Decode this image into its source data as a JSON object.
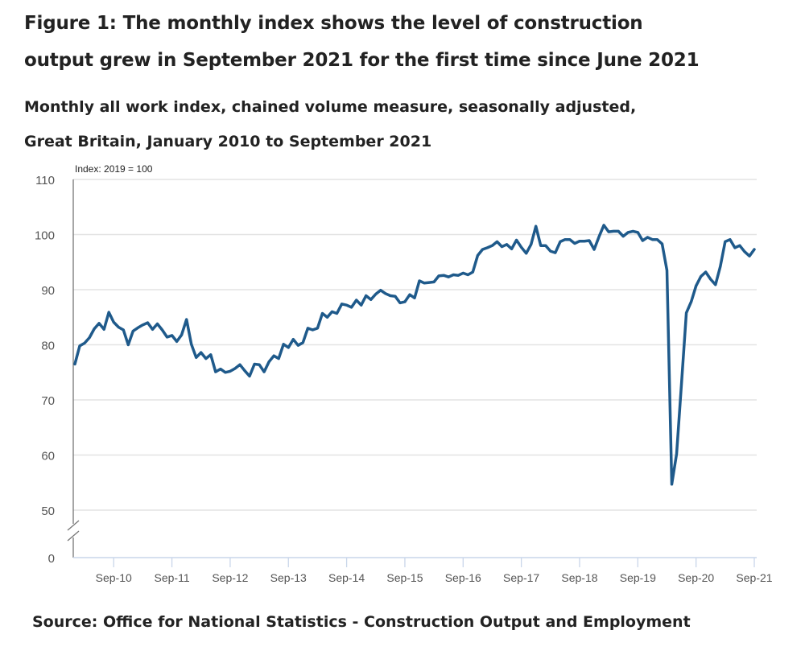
{
  "title_line1": "Figure 1: The monthly index shows the level of construction",
  "title_line2": "output grew in September 2021 for the first time since June 2021",
  "subtitle_line1": "Monthly all work index, chained volume measure, seasonally adjusted,",
  "subtitle_line2": "Great Britain, January 2010 to September 2021",
  "source": "Source: Office for National Statistics - Construction Output and Employment",
  "colors": {
    "line": "#1f5a8b",
    "grid": "#e3e3e3",
    "axis": "#777777",
    "xaxis": "#c9d6ea",
    "text": "#555555"
  },
  "chart_data": {
    "type": "line",
    "title": "Monthly all work index, chained volume measure, seasonally adjusted, Great Britain, January 2010 to September 2021",
    "ylabel": "Index: 2019 = 100",
    "xlabel": "",
    "ylim": [
      0,
      110
    ],
    "y_axis_break": [
      0,
      50
    ],
    "yticks": [
      0,
      50,
      60,
      70,
      80,
      90,
      100,
      110
    ],
    "grid": true,
    "legend": "none",
    "x_start": "Jan-2010",
    "x_end": "Sep-2021",
    "xtick_labels": [
      "Sep-10",
      "Sep-11",
      "Sep-12",
      "Sep-13",
      "Sep-14",
      "Sep-15",
      "Sep-16",
      "Sep-17",
      "Sep-18",
      "Sep-19",
      "Sep-20",
      "Sep-21"
    ],
    "xtick_month_index": [
      8,
      20,
      32,
      44,
      56,
      68,
      80,
      92,
      104,
      116,
      128,
      140
    ],
    "series": [
      {
        "name": "Monthly all work index",
        "values": [
          76.5,
          79.8,
          80.3,
          81.3,
          82.9,
          83.9,
          82.8,
          85.9,
          84.1,
          83.2,
          82.7,
          80.0,
          82.5,
          83.1,
          83.6,
          84.0,
          82.8,
          83.8,
          82.7,
          81.4,
          81.7,
          80.6,
          81.8,
          84.6,
          80.1,
          77.7,
          78.6,
          77.5,
          78.2,
          75.1,
          75.6,
          75.0,
          75.2,
          75.7,
          76.4,
          75.3,
          74.3,
          76.5,
          76.4,
          75.1,
          76.9,
          78.0,
          77.5,
          80.1,
          79.5,
          81.0,
          79.9,
          80.4,
          83.0,
          82.7,
          83.0,
          85.7,
          85.0,
          86.0,
          85.7,
          87.4,
          87.2,
          86.8,
          88.1,
          87.2,
          88.9,
          88.2,
          89.2,
          89.9,
          89.3,
          88.9,
          88.8,
          87.6,
          87.8,
          89.1,
          88.5,
          91.6,
          91.2,
          91.3,
          91.4,
          92.5,
          92.6,
          92.3,
          92.7,
          92.6,
          93.0,
          92.7,
          93.2,
          96.2,
          97.3,
          97.6,
          98.0,
          98.7,
          97.8,
          98.2,
          97.4,
          99.0,
          97.7,
          96.6,
          98.2,
          101.5,
          98.0,
          98.0,
          97.0,
          96.7,
          98.7,
          99.1,
          99.1,
          98.4,
          98.8,
          98.8,
          98.9,
          97.3,
          99.6,
          101.7,
          100.5,
          100.6,
          100.6,
          99.7,
          100.4,
          100.6,
          100.4,
          98.9,
          99.5,
          99.1,
          99.1,
          98.3,
          93.5,
          54.7,
          60.2,
          73.0,
          85.8,
          87.8,
          90.7,
          92.4,
          93.2,
          91.9,
          90.9,
          94.2,
          98.7,
          99.1,
          97.6,
          98.0,
          96.9,
          96.1,
          97.3
        ]
      }
    ]
  }
}
